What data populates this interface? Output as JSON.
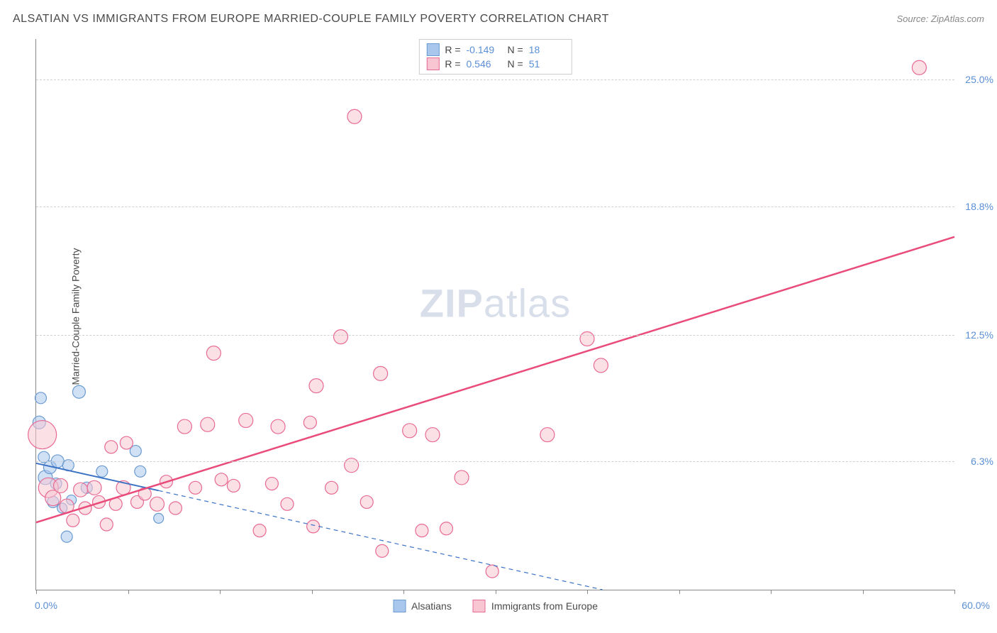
{
  "title": "ALSATIAN VS IMMIGRANTS FROM EUROPE MARRIED-COUPLE FAMILY POVERTY CORRELATION CHART",
  "source": "Source: ZipAtlas.com",
  "y_axis_label": "Married-Couple Family Poverty",
  "watermark_bold": "ZIP",
  "watermark_light": "atlas",
  "chart": {
    "type": "scatter",
    "xlim": [
      0,
      60
    ],
    "ylim": [
      0,
      27
    ],
    "x_tick_positions": [
      0,
      6,
      12,
      18,
      24,
      30,
      36,
      42,
      48,
      54,
      60
    ],
    "x_label_min": "0.0%",
    "x_label_max": "60.0%",
    "y_ticks": [
      {
        "value": 6.3,
        "label": "6.3%"
      },
      {
        "value": 12.5,
        "label": "12.5%"
      },
      {
        "value": 18.8,
        "label": "18.8%"
      },
      {
        "value": 25.0,
        "label": "25.0%"
      }
    ],
    "background_color": "#ffffff",
    "grid_color": "#d0d0d0",
    "series": [
      {
        "name": "Alsatians",
        "color_fill": "#a9c7ec",
        "color_stroke": "#6b9bd1",
        "r_value": "-0.149",
        "n_value": "18",
        "trend": {
          "x1": 0,
          "y1": 6.2,
          "x2": 37,
          "y2": 0,
          "dash_after_x": 8,
          "line_color": "#3b72c4",
          "line_width": 2
        },
        "points": [
          {
            "x": 0.2,
            "y": 8.2,
            "r": 9
          },
          {
            "x": 0.3,
            "y": 9.4,
            "r": 8
          },
          {
            "x": 0.5,
            "y": 6.5,
            "r": 8
          },
          {
            "x": 0.6,
            "y": 5.5,
            "r": 10
          },
          {
            "x": 0.9,
            "y": 6.0,
            "r": 9
          },
          {
            "x": 1.1,
            "y": 4.3,
            "r": 8
          },
          {
            "x": 1.3,
            "y": 5.2,
            "r": 8
          },
          {
            "x": 1.4,
            "y": 6.3,
            "r": 9
          },
          {
            "x": 1.7,
            "y": 4.0,
            "r": 7
          },
          {
            "x": 2.1,
            "y": 6.1,
            "r": 8
          },
          {
            "x": 2.3,
            "y": 4.4,
            "r": 7
          },
          {
            "x": 2.8,
            "y": 9.7,
            "r": 9
          },
          {
            "x": 3.3,
            "y": 5.0,
            "r": 8
          },
          {
            "x": 4.3,
            "y": 5.8,
            "r": 8
          },
          {
            "x": 6.5,
            "y": 6.8,
            "r": 8
          },
          {
            "x": 6.8,
            "y": 5.8,
            "r": 8
          },
          {
            "x": 8.0,
            "y": 3.5,
            "r": 7
          },
          {
            "x": 2.0,
            "y": 2.6,
            "r": 8
          }
        ]
      },
      {
        "name": "Immigrants from Europe",
        "color_fill": "#f7c6d2",
        "color_stroke": "#e76a94",
        "r_value": "0.546",
        "n_value": "51",
        "trend": {
          "x1": 0,
          "y1": 3.3,
          "x2": 60,
          "y2": 17.3,
          "dash_after_x": 999,
          "line_color": "#e94b7a",
          "line_width": 2.5
        },
        "points": [
          {
            "x": 0.4,
            "y": 7.6,
            "r": 20
          },
          {
            "x": 0.8,
            "y": 5.0,
            "r": 14
          },
          {
            "x": 1.1,
            "y": 4.5,
            "r": 11
          },
          {
            "x": 1.6,
            "y": 5.1,
            "r": 10
          },
          {
            "x": 2.0,
            "y": 4.1,
            "r": 10
          },
          {
            "x": 2.4,
            "y": 3.4,
            "r": 9
          },
          {
            "x": 2.9,
            "y": 4.9,
            "r": 10
          },
          {
            "x": 3.2,
            "y": 4.0,
            "r": 9
          },
          {
            "x": 3.8,
            "y": 5.0,
            "r": 10
          },
          {
            "x": 4.1,
            "y": 4.3,
            "r": 9
          },
          {
            "x": 4.6,
            "y": 3.2,
            "r": 9
          },
          {
            "x": 5.2,
            "y": 4.2,
            "r": 9
          },
          {
            "x": 5.7,
            "y": 5.0,
            "r": 10
          },
          {
            "x": 5.9,
            "y": 7.2,
            "r": 9
          },
          {
            "x": 6.6,
            "y": 4.3,
            "r": 9
          },
          {
            "x": 7.9,
            "y": 4.2,
            "r": 10
          },
          {
            "x": 8.5,
            "y": 5.3,
            "r": 9
          },
          {
            "x": 9.1,
            "y": 4.0,
            "r": 9
          },
          {
            "x": 9.7,
            "y": 8.0,
            "r": 10
          },
          {
            "x": 10.4,
            "y": 5.0,
            "r": 9
          },
          {
            "x": 11.2,
            "y": 8.1,
            "r": 10
          },
          {
            "x": 11.6,
            "y": 11.6,
            "r": 10
          },
          {
            "x": 12.1,
            "y": 5.4,
            "r": 9
          },
          {
            "x": 12.9,
            "y": 5.1,
            "r": 9
          },
          {
            "x": 13.7,
            "y": 8.3,
            "r": 10
          },
          {
            "x": 14.6,
            "y": 2.9,
            "r": 9
          },
          {
            "x": 15.4,
            "y": 5.2,
            "r": 9
          },
          {
            "x": 15.8,
            "y": 8.0,
            "r": 10
          },
          {
            "x": 16.4,
            "y": 4.2,
            "r": 9
          },
          {
            "x": 17.9,
            "y": 8.2,
            "r": 9
          },
          {
            "x": 18.1,
            "y": 3.1,
            "r": 9
          },
          {
            "x": 18.3,
            "y": 10.0,
            "r": 10
          },
          {
            "x": 19.9,
            "y": 12.4,
            "r": 10
          },
          {
            "x": 20.6,
            "y": 6.1,
            "r": 10
          },
          {
            "x": 20.8,
            "y": 23.2,
            "r": 10
          },
          {
            "x": 21.6,
            "y": 4.3,
            "r": 9
          },
          {
            "x": 22.5,
            "y": 10.6,
            "r": 10
          },
          {
            "x": 22.6,
            "y": 1.9,
            "r": 9
          },
          {
            "x": 24.4,
            "y": 7.8,
            "r": 10
          },
          {
            "x": 25.9,
            "y": 7.6,
            "r": 10
          },
          {
            "x": 26.8,
            "y": 3.0,
            "r": 9
          },
          {
            "x": 27.8,
            "y": 5.5,
            "r": 10
          },
          {
            "x": 29.8,
            "y": 0.9,
            "r": 9
          },
          {
            "x": 33.4,
            "y": 7.6,
            "r": 10
          },
          {
            "x": 36.0,
            "y": 12.3,
            "r": 10
          },
          {
            "x": 36.9,
            "y": 11.0,
            "r": 10
          },
          {
            "x": 57.7,
            "y": 25.6,
            "r": 10
          },
          {
            "x": 25.2,
            "y": 2.9,
            "r": 9
          },
          {
            "x": 19.3,
            "y": 5.0,
            "r": 9
          },
          {
            "x": 7.1,
            "y": 4.7,
            "r": 9
          },
          {
            "x": 4.9,
            "y": 7.0,
            "r": 9
          }
        ]
      }
    ]
  }
}
